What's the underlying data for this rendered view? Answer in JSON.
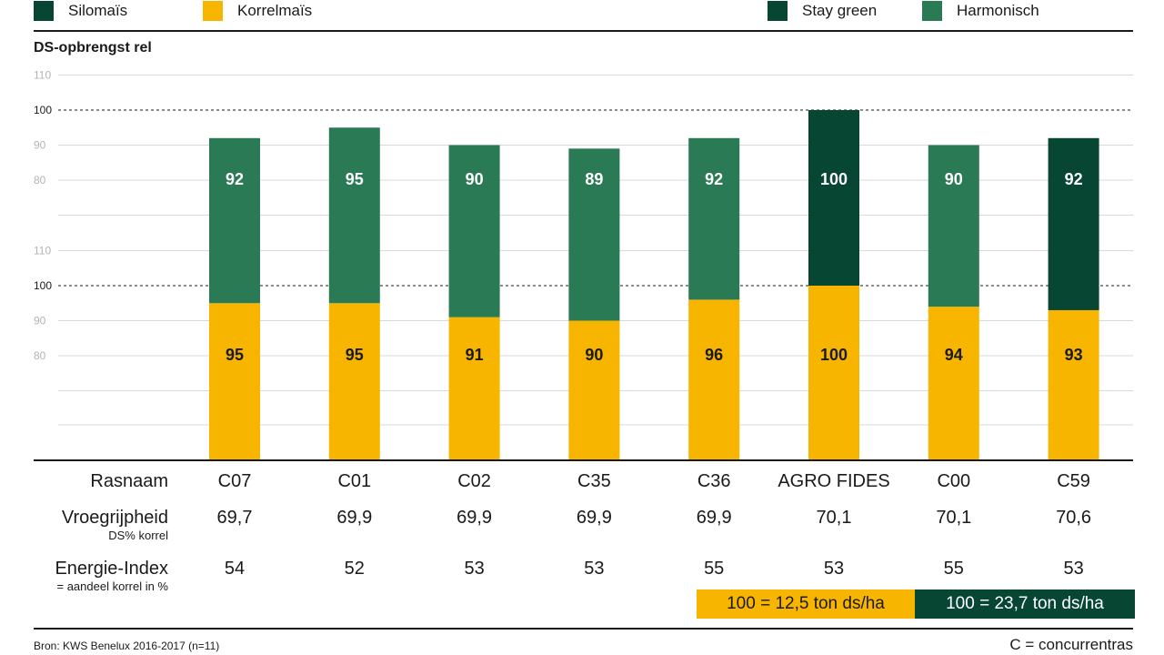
{
  "legend": {
    "silomais": {
      "label": "Silomaïs",
      "color": "#064632"
    },
    "korrelmais": {
      "label": "Korrelmaïs",
      "color": "#f7b500"
    },
    "stay_green": {
      "label": "Stay green",
      "color": "#064632"
    },
    "harmonisch": {
      "label": "Harmonisch",
      "color": "#2a7a56"
    }
  },
  "y_axis_title": "DS-opbrengst rel",
  "chart_data": {
    "type": "bar",
    "title": "DS-opbrengst rel",
    "categories": [
      "C07",
      "C01",
      "C02",
      "C35",
      "C36",
      "AGRO FIDES",
      "C00",
      "C59"
    ],
    "panels": [
      {
        "name": "Silomaïs",
        "ticks": [
          80,
          90,
          100,
          110
        ],
        "reference": 100,
        "values": [
          92,
          95,
          90,
          89,
          92,
          100,
          90,
          92
        ],
        "types": [
          "Harmonisch",
          "Harmonisch",
          "Harmonisch",
          "Harmonisch",
          "Harmonisch",
          "Stay green",
          "Harmonisch",
          "Stay green"
        ]
      },
      {
        "name": "Korrelmaïs",
        "ticks": [
          80,
          90,
          100,
          110
        ],
        "reference": 100,
        "values": [
          95,
          95,
          91,
          90,
          96,
          100,
          94,
          93
        ]
      }
    ],
    "colors": {
      "Harmonisch": "#2a7a56",
      "Stay green": "#064632",
      "Korrelmaïs": "#f7b500"
    }
  },
  "table": {
    "rasnaam_label": "Rasnaam",
    "vroeg_label": "Vroegrijpheid",
    "vroeg_sub": "DS% korrel",
    "energie_label": "Energie-Index",
    "energie_sub": "= aandeel korrel in %",
    "rasnaam": [
      "C07",
      "C01",
      "C02",
      "C35",
      "C36",
      "AGRO FIDES",
      "C00",
      "C59"
    ],
    "vroegrijpheid": [
      "69,7",
      "69,9",
      "69,9",
      "69,9",
      "69,9",
      "70,1",
      "70,1",
      "70,6"
    ],
    "energie": [
      "54",
      "52",
      "53",
      "53",
      "55",
      "53",
      "55",
      "53"
    ]
  },
  "scale": {
    "korrel": {
      "text": "100 = 12,5 ton ds/ha",
      "color": "#f7b500"
    },
    "silo": {
      "text": "100 = 23,7 ton ds/ha",
      "color": "#064632"
    }
  },
  "footer": {
    "source": "Bron: KWS Benelux 2016-2017 (n=11)",
    "note": "C = concurrentras"
  }
}
